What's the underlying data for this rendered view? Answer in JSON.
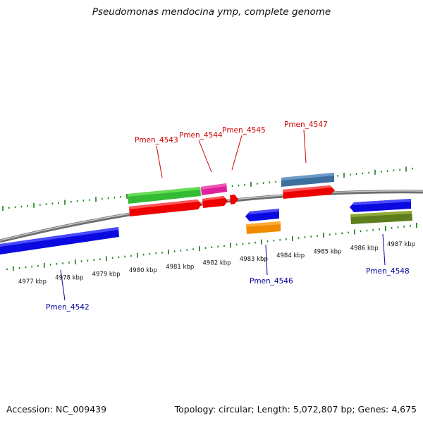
{
  "title": "Pseudomonas mendocina ymp, complete genome",
  "footer": {
    "accession": "Accession: NC_009439",
    "summary": "Topology: circular; Length: 5,072,807 bp; Genes: 4,675"
  },
  "colors": {
    "forward_label": "#cc0000",
    "reverse_label": "#000099",
    "tick": "#1a7a1a",
    "backbone": "#8a8a8a"
  },
  "kbp_labels": [
    "4977 kbp",
    "4978 kbp",
    "4979 kbp",
    "4980 kbp",
    "4981 kbp",
    "4982 kbp",
    "4983 kbp",
    "4984 kbp",
    "4985 kbp",
    "4986 kbp",
    "4987 kbp"
  ],
  "gene_labels": {
    "g4542": "Pmen_4542",
    "g4543": "Pmen_4543",
    "g4544": "Pmen_4544",
    "g4545": "Pmen_4545",
    "g4546": "Pmen_4546",
    "g4547": "Pmen_4547",
    "g4548": "Pmen_4548"
  }
}
